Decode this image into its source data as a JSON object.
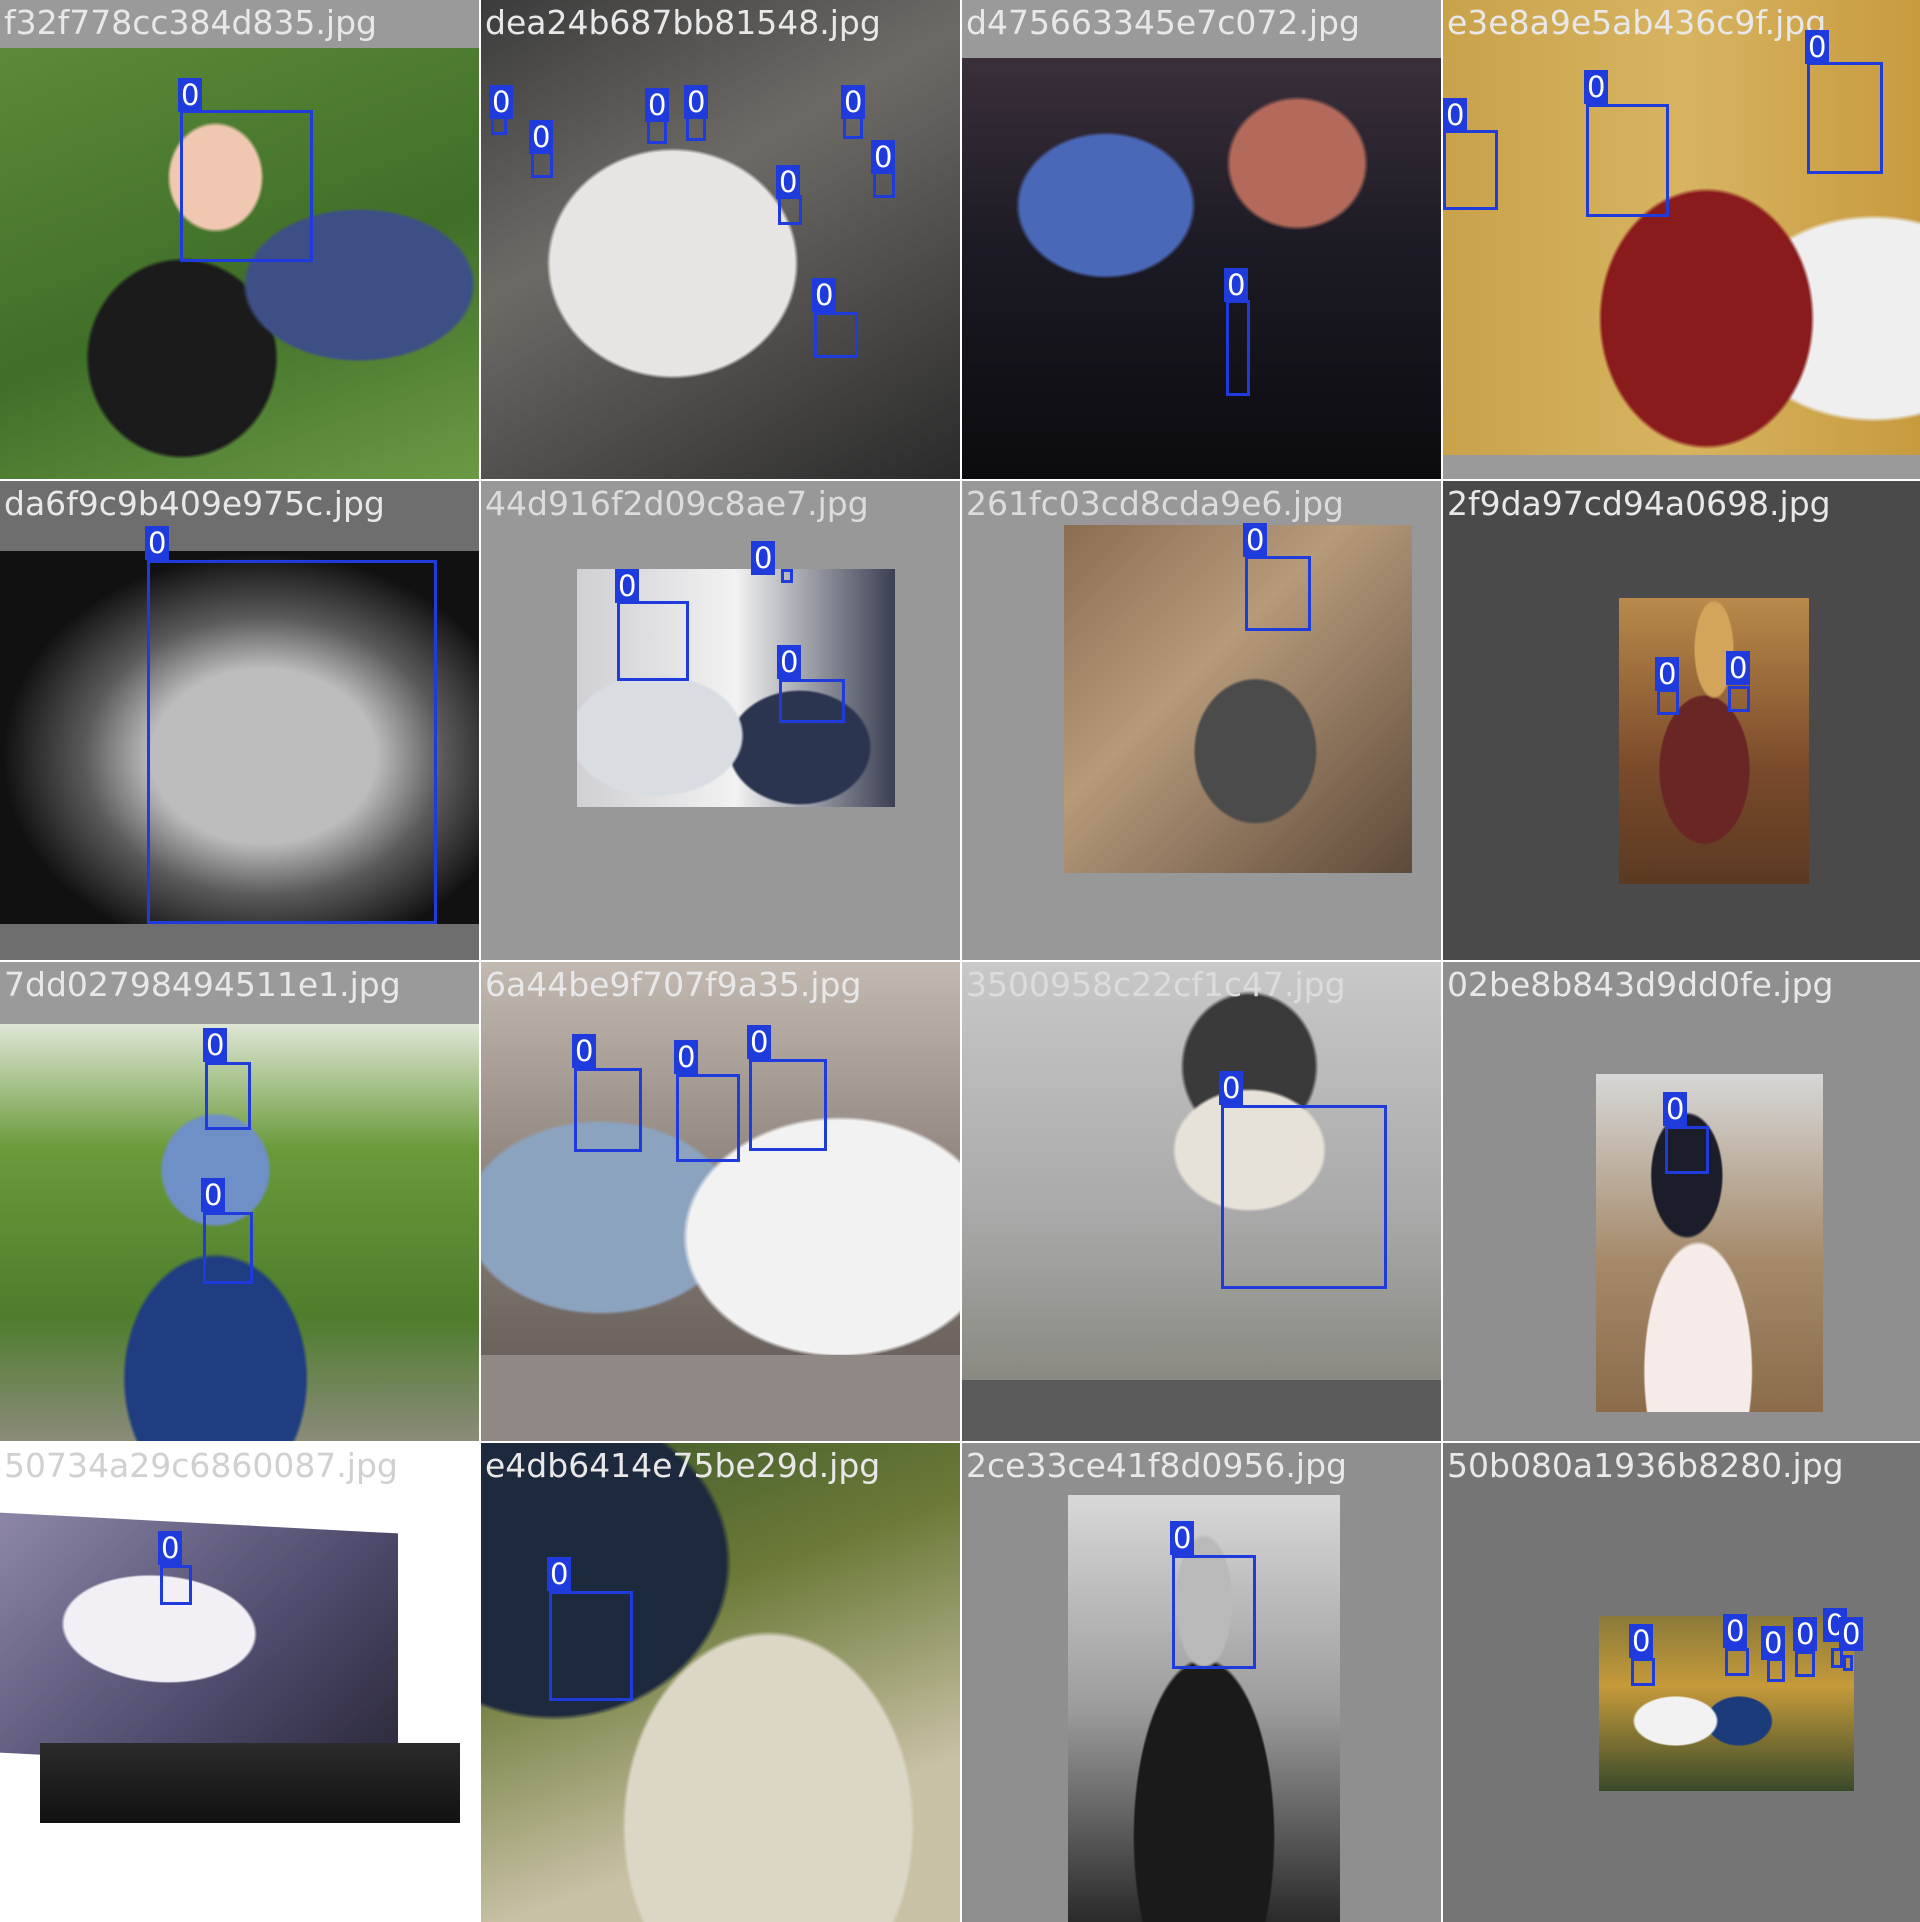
{
  "mosaic": {
    "colors": {
      "box": "#1f3bdc",
      "box_label_text": "#ffffff",
      "divider": "#ffffff"
    },
    "tiles": [
      {
        "filename": "f32f778cc384d835.jpg",
        "label_color": "#e8e8e8",
        "box_label": "0",
        "face_count": 1
      },
      {
        "filename": "dea24b687bb81548.jpg",
        "label_color": "#e8e8e8",
        "box_label": "0",
        "face_count": 10
      },
      {
        "filename": "d475663345e7c072.jpg",
        "label_color": "#e8e8e8",
        "box_label": "0",
        "face_count": 1
      },
      {
        "filename": "e3e8a9e5ab436c9f.jpg",
        "label_color": "#e8e8e8",
        "box_label": "0",
        "face_count": 3
      },
      {
        "filename": "da6f9c9b409e975c.jpg",
        "label_color": "#e8e8e8",
        "box_label": "0",
        "face_count": 1
      },
      {
        "filename": "44d916f2d09c8ae7.jpg",
        "label_color": "#dcdcdc",
        "box_label": "0",
        "face_count": 3
      },
      {
        "filename": "261fc03cd8cda9e6.jpg",
        "label_color": "#dcdcdc",
        "box_label": "0",
        "face_count": 1
      },
      {
        "filename": "2f9da97cd94a0698.jpg",
        "label_color": "#e8e8e8",
        "box_label": "0",
        "face_count": 2
      },
      {
        "filename": "7dd02798494511e1.jpg",
        "label_color": "#e8e8e8",
        "box_label": "0",
        "face_count": 2
      },
      {
        "filename": "6a44be9f707f9a35.jpg",
        "label_color": "#e8e8e8",
        "box_label": "0",
        "face_count": 3
      },
      {
        "filename": "3500958c22cf1c47.jpg",
        "label_color": "#dcdcdc",
        "box_label": "0",
        "face_count": 1
      },
      {
        "filename": "02be8b843d9dd0fe.jpg",
        "label_color": "#e8e8e8",
        "box_label": "0",
        "face_count": 1
      },
      {
        "filename": "50734a29c6860087.jpg",
        "label_color": "#d0d0d0",
        "box_label": "0",
        "face_count": 1
      },
      {
        "filename": "e4db6414e75be29d.jpg",
        "label_color": "#e8e8e8",
        "box_label": "0",
        "face_count": 1
      },
      {
        "filename": "2ce33ce41f8d0956.jpg",
        "label_color": "#e8e8e8",
        "box_label": "0",
        "face_count": 1
      },
      {
        "filename": "50b080a1936b8280.jpg",
        "label_color": "#e8e8e8",
        "box_label": "0",
        "face_count": 6
      }
    ]
  }
}
